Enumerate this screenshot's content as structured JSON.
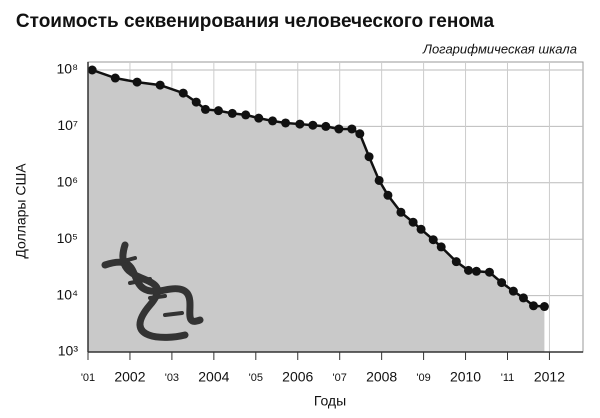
{
  "chart_data": {
    "type": "line",
    "title": "Стоимость секвенирования человеческого генома",
    "subtitle": "Логарифмическая шкала",
    "y_label": "Доллары США",
    "x_label": "Годы",
    "x": [
      2001.1,
      2001.65,
      2002.17,
      2002.72,
      2003.27,
      2003.58,
      2003.8,
      2004.11,
      2004.44,
      2004.76,
      2005.07,
      2005.4,
      2005.71,
      2006.05,
      2006.36,
      2006.67,
      2006.98,
      2007.29,
      2007.48,
      2007.7,
      2007.94,
      2008.15,
      2008.46,
      2008.75,
      2008.94,
      2009.23,
      2009.42,
      2009.78,
      2010.07,
      2010.26,
      2010.57,
      2010.86,
      2011.14,
      2011.38,
      2011.62,
      2011.88
    ],
    "series": [
      {
        "name": "Стоимость",
        "color": "#111111",
        "fill": "#c9c9c9",
        "values": [
          100000000,
          72000000,
          61000000,
          54000000,
          39000000,
          27000000,
          20000000,
          19000000,
          17000000,
          16000000,
          14000000,
          12500000,
          11500000,
          11000000,
          10500000,
          10000000,
          9000000,
          9000000,
          7400000,
          2900000,
          1100000,
          600000,
          300000,
          200000,
          150000,
          98000,
          73000,
          40000,
          28000,
          27000,
          26000,
          17000,
          12000,
          9100,
          6600,
          6400
        ]
      }
    ],
    "xlim": [
      2001,
      2012.8
    ],
    "xticks": [
      {
        "value": 2001,
        "label": "'01"
      },
      2002,
      {
        "value": 2003,
        "label": "'03"
      },
      2004,
      {
        "value": 2005,
        "label": "'05"
      },
      2006,
      {
        "value": 2007,
        "label": "'07"
      },
      2008,
      {
        "value": 2009,
        "label": "'09"
      },
      2010,
      {
        "value": 2011,
        "label": "'11"
      },
      2012
    ],
    "ylim": [
      1000,
      100000000
    ],
    "yticks": [
      {
        "value": 1000,
        "label": "10³"
      },
      {
        "value": 10000,
        "label": "10⁴"
      },
      {
        "value": 100000,
        "label": "10⁵"
      },
      {
        "value": 1000000,
        "label": "10⁶"
      },
      {
        "value": 10000000,
        "label": "10⁷"
      },
      {
        "value": 100000000,
        "label": "10⁸"
      }
    ],
    "ylog": true,
    "grid": true
  }
}
